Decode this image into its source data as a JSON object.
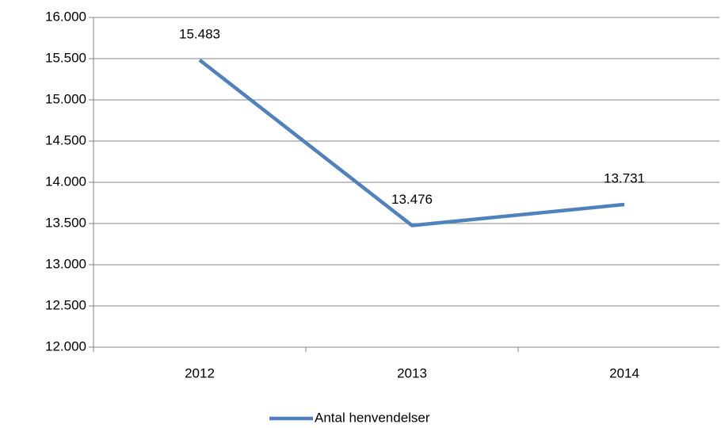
{
  "chart_data": {
    "type": "line",
    "categories": [
      "2012",
      "2013",
      "2014"
    ],
    "series": [
      {
        "name": "Antal henvendelser",
        "color": "#4f81bd",
        "values": [
          15483,
          13476,
          13731
        ],
        "value_labels": [
          "15.483",
          "13.476",
          "13.731"
        ]
      }
    ],
    "ylim": [
      12000,
      16000
    ],
    "yticks": [
      {
        "value": 12000,
        "label": "12.000"
      },
      {
        "value": 12500,
        "label": "12.500"
      },
      {
        "value": 13000,
        "label": "13.000"
      },
      {
        "value": 13500,
        "label": "13.500"
      },
      {
        "value": 14000,
        "label": "14.000"
      },
      {
        "value": 14500,
        "label": "14.500"
      },
      {
        "value": 15000,
        "label": "15.000"
      },
      {
        "value": 15500,
        "label": "15.500"
      },
      {
        "value": 16000,
        "label": "16.000"
      }
    ],
    "grid": true,
    "legend": "bottom"
  }
}
